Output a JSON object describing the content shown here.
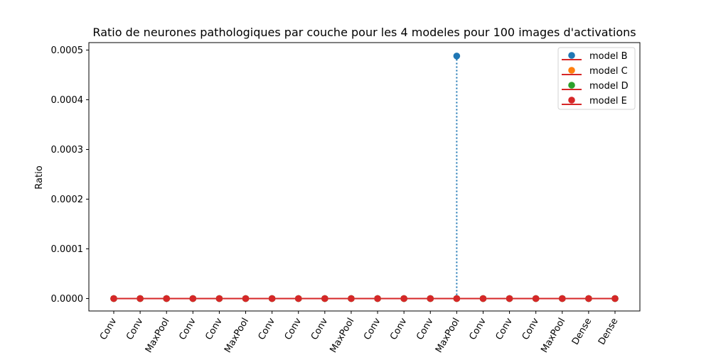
{
  "chart_data": {
    "type": "stem",
    "title": "Ratio de neurones pathologiques par couche pour les 4 modeles pour 100 images d'activations",
    "xlabel": "",
    "ylabel": "Ratio",
    "categories": [
      "Conv",
      "Conv",
      "MaxPool",
      "Conv",
      "Conv",
      "MaxPool",
      "Conv",
      "Conv",
      "Conv",
      "MaxPool",
      "Conv",
      "Conv",
      "Conv",
      "MaxPool",
      "Conv",
      "Conv",
      "Conv",
      "MaxPool",
      "Dense",
      "Dense"
    ],
    "ylim": [
      -2.5e-05,
      0.000515
    ],
    "yticks": [
      0.0,
      0.0001,
      0.0002,
      0.0003,
      0.0004,
      0.0005
    ],
    "ytick_labels": [
      "0.0000",
      "0.0001",
      "0.0002",
      "0.0003",
      "0.0004",
      "0.0005"
    ],
    "grid": false,
    "legend_position": "top-right",
    "series": [
      {
        "name": "model B",
        "color": "#1f77b4",
        "values": [
          0,
          0,
          0,
          0,
          0,
          0,
          0,
          0,
          0,
          0,
          0,
          0,
          0,
          0.000488,
          0,
          0,
          0,
          0,
          0,
          0
        ]
      },
      {
        "name": "model C",
        "color": "#ff7f0e",
        "values": [
          0,
          0,
          0,
          0,
          0,
          0,
          0,
          0,
          0,
          0,
          0,
          0,
          0,
          0,
          0,
          0,
          0,
          0,
          0,
          0
        ]
      },
      {
        "name": "model D",
        "color": "#2ca02c",
        "values": [
          0,
          0,
          0,
          0,
          0,
          0,
          0,
          0,
          0,
          0,
          0,
          0,
          0,
          0,
          0,
          0,
          0,
          0,
          0,
          0
        ]
      },
      {
        "name": "model E",
        "color": "#d62728",
        "values": [
          0,
          0,
          0,
          0,
          0,
          0,
          0,
          0,
          0,
          0,
          0,
          0,
          0,
          0,
          0,
          0,
          0,
          0,
          0,
          0
        ]
      }
    ],
    "baseline_color": "#d62728"
  }
}
